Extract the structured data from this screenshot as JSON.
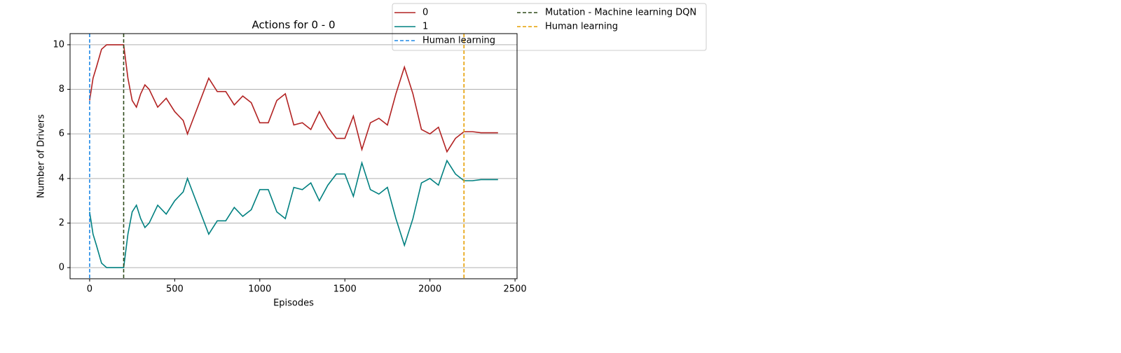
{
  "chart_data": {
    "type": "line",
    "title": "Actions for 0 - 0",
    "x_label": "Episodes",
    "y_label": "Number of Drivers",
    "x": [
      0,
      10,
      20,
      40,
      70,
      100,
      150,
      200,
      225,
      250,
      275,
      300,
      325,
      350,
      400,
      450,
      500,
      550,
      575,
      600,
      650,
      700,
      750,
      800,
      850,
      900,
      950,
      1000,
      1050,
      1100,
      1150,
      1200,
      1250,
      1300,
      1350,
      1400,
      1450,
      1500,
      1550,
      1600,
      1650,
      1700,
      1750,
      1800,
      1850,
      1900,
      1950,
      2000,
      2050,
      2100,
      2150,
      2200,
      2250,
      2300,
      2350,
      2400
    ],
    "series": [
      {
        "name": "0",
        "color": "#b22222",
        "values": [
          7.5,
          8.0,
          8.5,
          9.0,
          9.8,
          10,
          10,
          10,
          8.5,
          7.5,
          7.2,
          7.8,
          8.2,
          8.0,
          7.2,
          7.6,
          7.0,
          6.6,
          6.0,
          6.5,
          7.5,
          8.5,
          7.9,
          7.9,
          7.3,
          7.7,
          7.4,
          6.5,
          6.5,
          7.5,
          7.8,
          6.4,
          6.5,
          6.2,
          7.0,
          6.3,
          5.8,
          5.8,
          6.8,
          5.3,
          6.5,
          6.7,
          6.4,
          7.8,
          9.0,
          7.8,
          6.2,
          6.0,
          6.3,
          5.2,
          5.8,
          6.1,
          6.1,
          6.05,
          6.05,
          6.05
        ]
      },
      {
        "name": "1",
        "color": "#008080",
        "values": [
          2.5,
          2.0,
          1.5,
          1.0,
          0.2,
          0,
          0,
          0,
          1.5,
          2.5,
          2.8,
          2.2,
          1.8,
          2.0,
          2.8,
          2.4,
          3.0,
          3.4,
          4.0,
          3.5,
          2.5,
          1.5,
          2.1,
          2.1,
          2.7,
          2.3,
          2.6,
          3.5,
          3.5,
          2.5,
          2.2,
          3.6,
          3.5,
          3.8,
          3.0,
          3.7,
          4.2,
          4.2,
          3.2,
          4.7,
          3.5,
          3.3,
          3.6,
          2.2,
          1.0,
          2.2,
          3.8,
          4.0,
          3.7,
          4.8,
          4.2,
          3.9,
          3.9,
          3.95,
          3.95,
          3.95
        ]
      }
    ],
    "vlines": [
      {
        "name": "Human learning",
        "color": "#1e88e5",
        "x": 0
      },
      {
        "name": "Mutation - Machine learning DQN",
        "color": "#2e4a1a",
        "x": 200
      },
      {
        "name": "Human learning",
        "color": "#e69f00",
        "x": 2200
      }
    ],
    "xlim": [
      -115,
      2512
    ],
    "ylim": [
      -0.5,
      10.5
    ],
    "xticks": [
      0,
      500,
      1000,
      1500,
      2000,
      2500
    ],
    "yticks": [
      0,
      2,
      4,
      6,
      8,
      10
    ],
    "grid": "y"
  }
}
